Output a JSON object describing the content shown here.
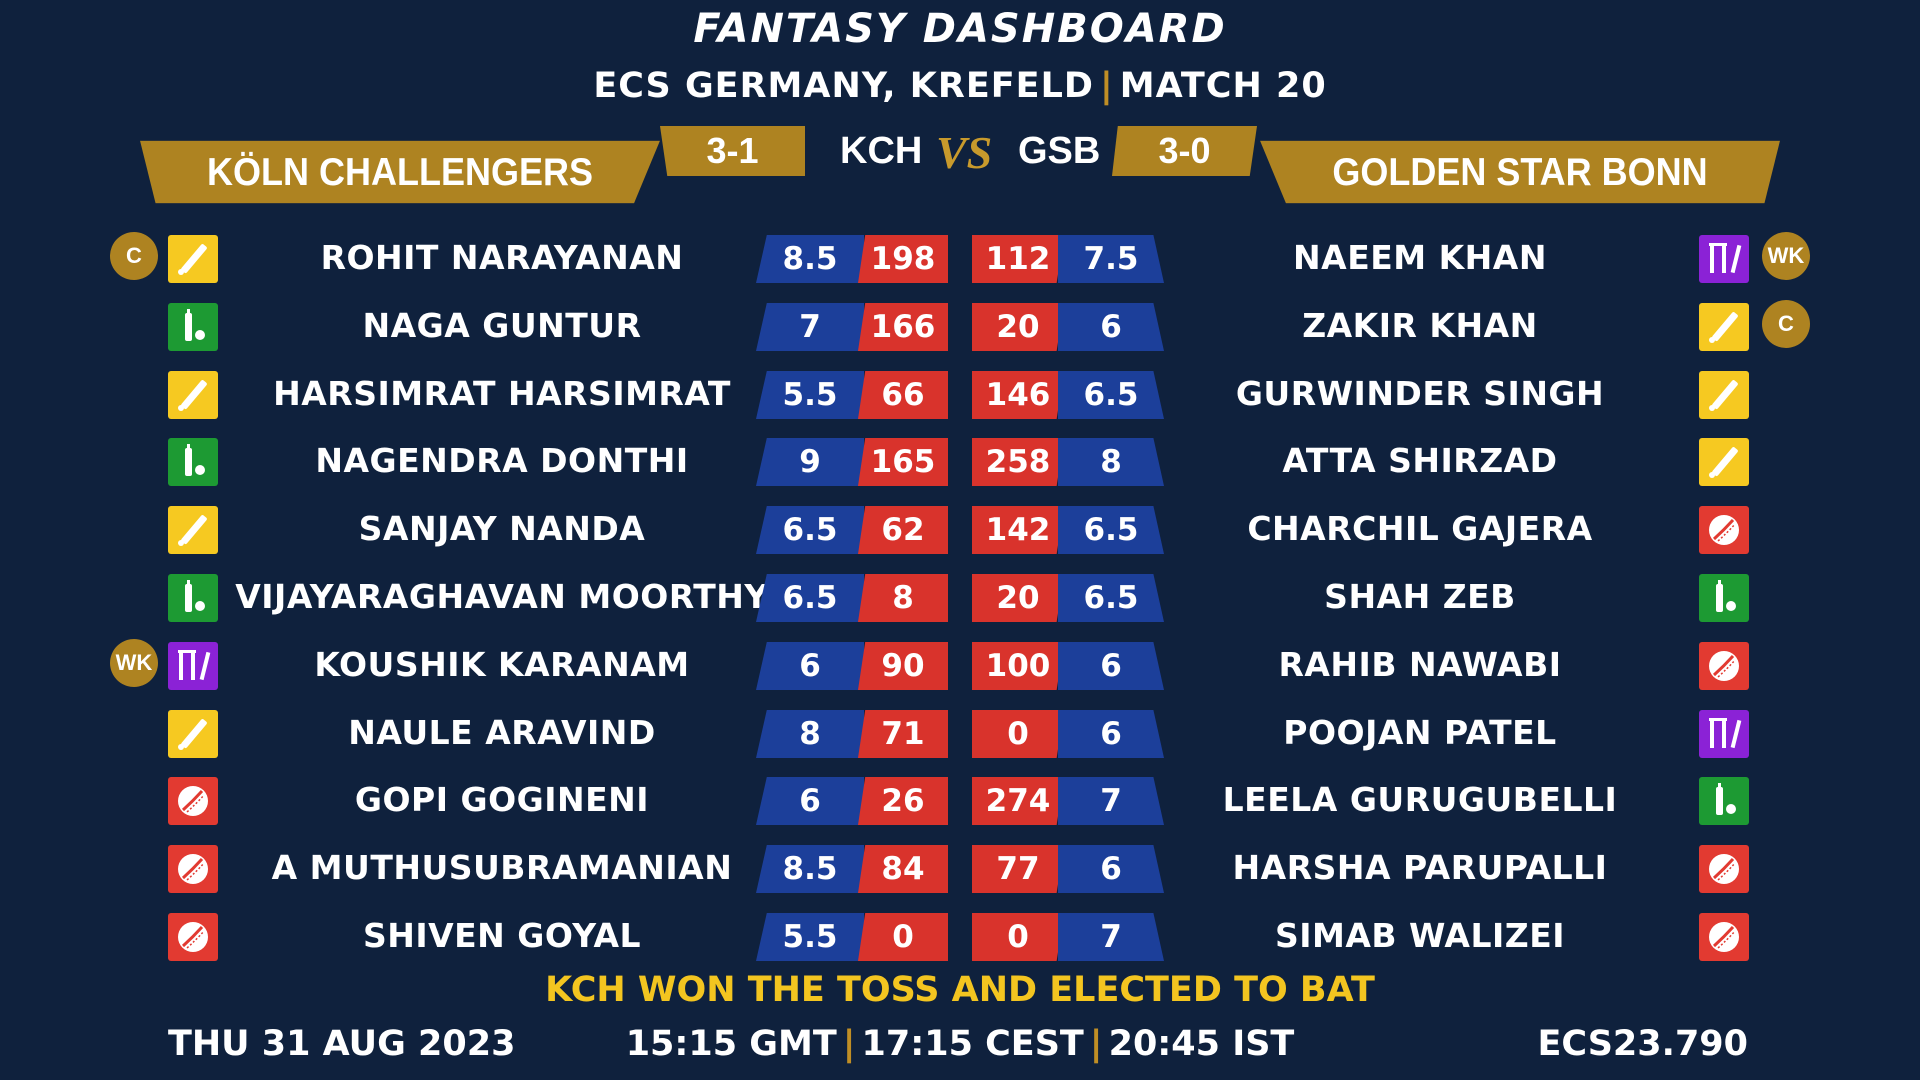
{
  "header": {
    "title": "FANTASY DASHBOARD",
    "subtitle_event": "ECS GERMANY, KREFELD",
    "subtitle_match": "MATCH 20"
  },
  "teams": {
    "left": {
      "name": "KÖLN CHALLENGERS",
      "abbr": "KCH",
      "record": "3-1"
    },
    "right": {
      "name": "GOLDEN STAR BONN",
      "abbr": "GSB",
      "record": "3-0"
    },
    "vs": "VS"
  },
  "colors": {
    "background": "#0f213d",
    "gold": "#ae8321",
    "credit_blue": "#1c3f9a",
    "points_red": "#d9332c",
    "toss_yellow": "#f3c520",
    "batter_yellow": "#f6c921",
    "allrounder_green": "#1d9a33",
    "keeper_purple": "#8b22d6",
    "bowler_red": "#e23a31"
  },
  "left_players": [
    {
      "name": "ROHIT NARAYANAN",
      "credits": "8.5",
      "points": "198",
      "role": "batter-icon",
      "badge": "C"
    },
    {
      "name": "NAGA GUNTUR",
      "credits": "7",
      "points": "166",
      "role": "allrounder-icon",
      "badge": ""
    },
    {
      "name": "HARSIMRAT HARSIMRAT",
      "credits": "5.5",
      "points": "66",
      "role": "batter-icon",
      "badge": ""
    },
    {
      "name": "NAGENDRA DONTHI",
      "credits": "9",
      "points": "165",
      "role": "allrounder-icon",
      "badge": ""
    },
    {
      "name": "SANJAY NANDA",
      "credits": "6.5",
      "points": "62",
      "role": "batter-icon",
      "badge": ""
    },
    {
      "name": "VIJAYARAGHAVAN MOORTHY",
      "credits": "6.5",
      "points": "8",
      "role": "allrounder-icon",
      "badge": ""
    },
    {
      "name": "KOUSHIK KARANAM",
      "credits": "6",
      "points": "90",
      "role": "wicketkeeper-icon",
      "badge": "WK"
    },
    {
      "name": "NAULE ARAVIND",
      "credits": "8",
      "points": "71",
      "role": "batter-icon",
      "badge": ""
    },
    {
      "name": "GOPI GOGINENI",
      "credits": "6",
      "points": "26",
      "role": "bowler-icon",
      "badge": ""
    },
    {
      "name": "A MUTHUSUBRAMANIAN",
      "credits": "8.5",
      "points": "84",
      "role": "bowler-icon",
      "badge": ""
    },
    {
      "name": "SHIVEN GOYAL",
      "credits": "5.5",
      "points": "0",
      "role": "bowler-icon",
      "badge": ""
    }
  ],
  "right_players": [
    {
      "name": "NAEEM KHAN",
      "credits": "7.5",
      "points": "112",
      "role": "wicketkeeper-icon",
      "badge": "WK"
    },
    {
      "name": "ZAKIR KHAN",
      "credits": "6",
      "points": "20",
      "role": "batter-icon",
      "badge": "C"
    },
    {
      "name": "GURWINDER SINGH",
      "credits": "6.5",
      "points": "146",
      "role": "batter-icon",
      "badge": ""
    },
    {
      "name": "ATTA SHIRZAD",
      "credits": "8",
      "points": "258",
      "role": "batter-icon",
      "badge": ""
    },
    {
      "name": "CHARCHIL GAJERA",
      "credits": "6.5",
      "points": "142",
      "role": "bowler-icon",
      "badge": ""
    },
    {
      "name": "SHAH ZEB",
      "credits": "6.5",
      "points": "20",
      "role": "allrounder-icon",
      "badge": ""
    },
    {
      "name": "RAHIB NAWABI",
      "credits": "6",
      "points": "100",
      "role": "bowler-icon",
      "badge": ""
    },
    {
      "name": "POOJAN PATEL",
      "credits": "6",
      "points": "0",
      "role": "wicketkeeper-icon",
      "badge": ""
    },
    {
      "name": "LEELA GURUGUBELLI",
      "credits": "7",
      "points": "274",
      "role": "allrounder-icon",
      "badge": ""
    },
    {
      "name": "HARSHA PARUPALLI",
      "credits": "6",
      "points": "77",
      "role": "bowler-icon",
      "badge": ""
    },
    {
      "name": "SIMAB WALIZEI",
      "credits": "7",
      "points": "0",
      "role": "bowler-icon",
      "badge": ""
    }
  ],
  "toss": "KCH WON THE TOSS AND ELECTED TO BAT",
  "footer": {
    "date": "THU 31 AUG 2023",
    "time_gmt": "15:15 GMT",
    "time_cest": "17:15 CEST",
    "time_ist": "20:45 IST",
    "code": "ECS23.790"
  }
}
